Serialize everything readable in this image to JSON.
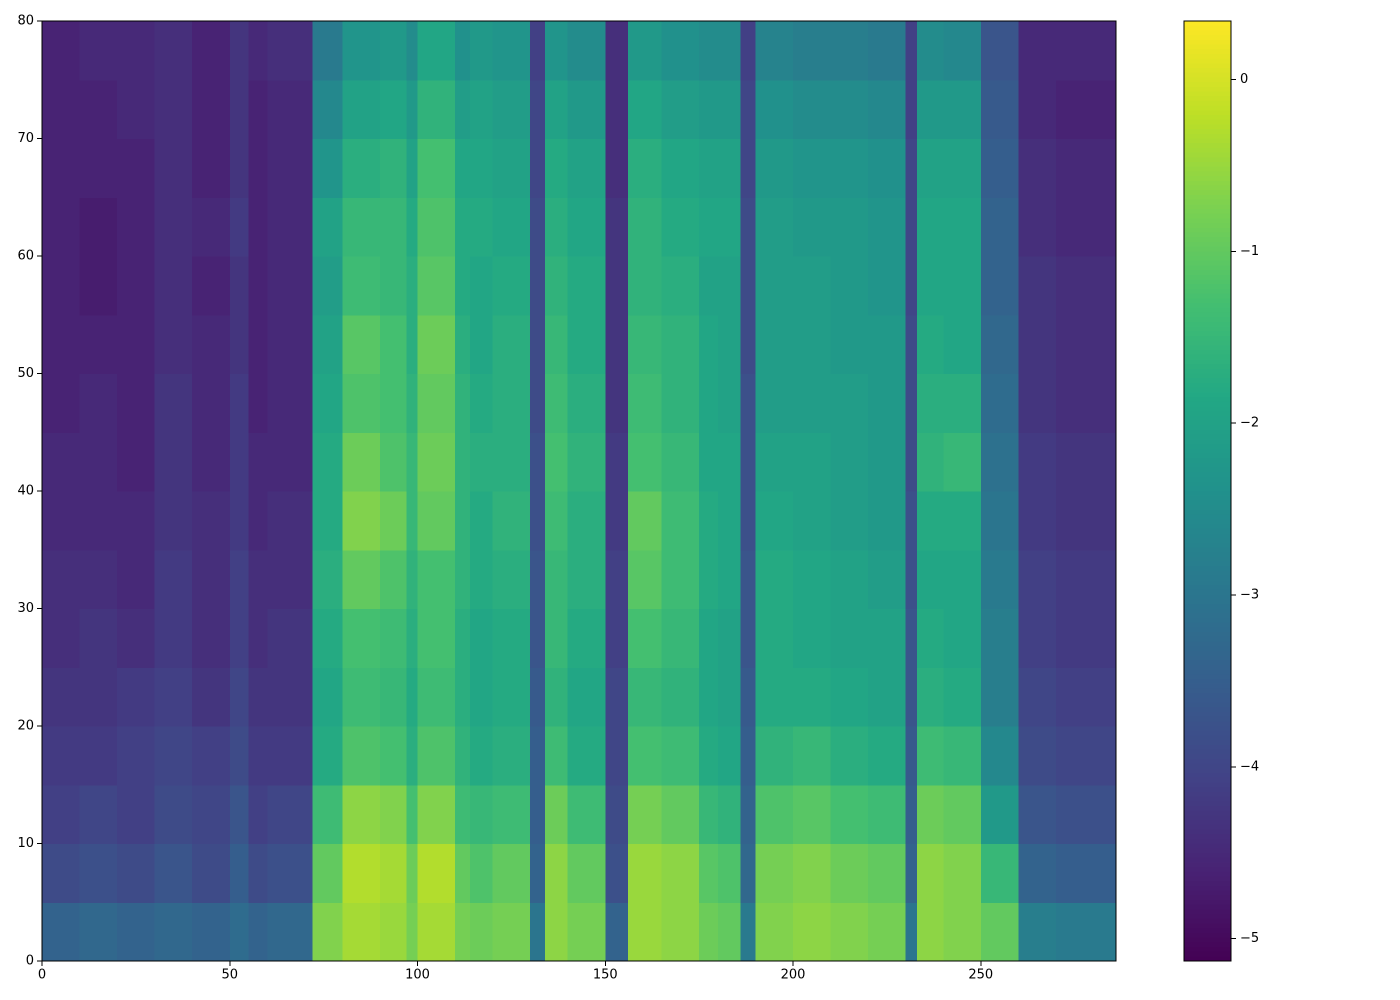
{
  "chart_data": {
    "type": "heatmap",
    "colormap": "viridis",
    "x_edges": [
      0,
      10,
      20,
      30,
      40,
      50,
      55,
      60,
      72,
      80,
      90,
      97,
      100,
      110,
      114,
      120,
      130,
      134,
      140,
      150,
      156,
      165,
      175,
      180,
      186,
      190,
      200,
      210,
      220,
      230,
      233,
      240,
      250,
      260,
      270,
      286
    ],
    "y_edges": [
      0,
      5,
      10,
      15,
      20,
      25,
      30,
      35,
      40,
      45,
      50,
      55,
      60,
      65,
      70,
      75,
      80
    ],
    "values": [
      [
        -3.4,
        -3.9,
        -4.1,
        -4.2,
        -4.3,
        -4.4,
        -4.4,
        -4.5,
        -4.5,
        -4.6,
        -4.6,
        -4.6,
        -4.6,
        -4.6,
        -4.6,
        -4.6
      ],
      [
        -3.3,
        -3.8,
        -4.0,
        -4.2,
        -4.3,
        -4.3,
        -4.4,
        -4.5,
        -4.5,
        -4.5,
        -4.6,
        -4.7,
        -4.7,
        -4.6,
        -4.6,
        -4.5
      ],
      [
        -3.4,
        -3.9,
        -4.1,
        -4.1,
        -4.2,
        -4.4,
        -4.5,
        -4.5,
        -4.6,
        -4.6,
        -4.6,
        -4.6,
        -4.6,
        -4.6,
        -4.5,
        -4.5
      ],
      [
        -3.3,
        -3.7,
        -3.9,
        -4.0,
        -4.1,
        -4.2,
        -4.2,
        -4.3,
        -4.3,
        -4.3,
        -4.4,
        -4.4,
        -4.4,
        -4.4,
        -4.4,
        -4.4
      ],
      [
        -3.4,
        -3.9,
        -4.0,
        -4.1,
        -4.3,
        -4.4,
        -4.4,
        -4.4,
        -4.5,
        -4.5,
        -4.5,
        -4.6,
        -4.5,
        -4.6,
        -4.6,
        -4.6
      ],
      [
        -3.2,
        -3.5,
        -3.7,
        -3.9,
        -4.0,
        -4.1,
        -4.1,
        -4.2,
        -4.2,
        -4.2,
        -4.3,
        -4.3,
        -4.2,
        -4.3,
        -4.3,
        -4.3
      ],
      [
        -3.4,
        -3.9,
        -4.1,
        -4.2,
        -4.3,
        -4.4,
        -4.4,
        -4.5,
        -4.5,
        -4.6,
        -4.6,
        -4.6,
        -4.6,
        -4.6,
        -4.6,
        -4.5
      ],
      [
        -3.3,
        -3.8,
        -4.0,
        -4.2,
        -4.3,
        -4.3,
        -4.4,
        -4.4,
        -4.5,
        -4.5,
        -4.5,
        -4.5,
        -4.5,
        -4.5,
        -4.5,
        -4.4
      ],
      [
        -0.7,
        -1.0,
        -1.4,
        -1.8,
        -1.9,
        -1.8,
        -1.7,
        -1.8,
        -1.8,
        -1.9,
        -2.0,
        -2.1,
        -2.0,
        -2.3,
        -2.6,
        -2.9
      ],
      [
        -0.4,
        -0.3,
        -0.6,
        -1.2,
        -1.4,
        -1.3,
        -1.0,
        -0.7,
        -0.9,
        -1.2,
        -1.1,
        -1.4,
        -1.5,
        -1.7,
        -2.0,
        -2.3
      ],
      [
        -0.5,
        -0.4,
        -0.7,
        -1.3,
        -1.5,
        -1.4,
        -1.2,
        -0.9,
        -1.2,
        -1.3,
        -1.3,
        -1.5,
        -1.5,
        -1.6,
        -1.9,
        -2.2
      ],
      [
        -0.8,
        -0.9,
        -1.3,
        -1.7,
        -1.8,
        -1.7,
        -1.6,
        -1.5,
        -1.5,
        -1.6,
        -1.7,
        -1.7,
        -1.8,
        -2.0,
        -2.2,
        -2.5
      ],
      [
        -0.4,
        -0.3,
        -0.7,
        -1.2,
        -1.4,
        -1.3,
        -1.3,
        -1.0,
        -0.9,
        -1.0,
        -0.9,
        -1.1,
        -1.2,
        -1.3,
        -1.6,
        -1.9
      ],
      [
        -0.8,
        -1.0,
        -1.4,
        -1.6,
        -1.7,
        -1.7,
        -1.6,
        -1.6,
        -1.6,
        -1.6,
        -1.7,
        -1.8,
        -1.8,
        -1.9,
        -2.1,
        -2.4
      ],
      [
        -0.9,
        -1.2,
        -1.5,
        -1.8,
        -1.9,
        -1.9,
        -1.8,
        -1.8,
        -1.7,
        -1.8,
        -1.9,
        -1.9,
        -1.8,
        -1.9,
        -2.0,
        -2.2
      ],
      [
        -0.8,
        -1.0,
        -1.4,
        -1.7,
        -1.8,
        -1.8,
        -1.7,
        -1.6,
        -1.7,
        -1.7,
        -1.7,
        -1.8,
        -1.9,
        -2.0,
        -2.1,
        -2.3
      ],
      [
        -3.0,
        -3.4,
        -3.5,
        -3.5,
        -3.6,
        -3.7,
        -3.7,
        -3.8,
        -3.8,
        -3.9,
        -3.9,
        -3.9,
        -3.9,
        -4.0,
        -4.0,
        -4.1
      ],
      [
        -0.6,
        -0.6,
        -0.9,
        -1.4,
        -1.6,
        -1.5,
        -1.5,
        -1.4,
        -1.3,
        -1.4,
        -1.5,
        -1.6,
        -1.7,
        -1.8,
        -2.0,
        -2.3
      ],
      [
        -0.8,
        -1.0,
        -1.4,
        -1.8,
        -1.9,
        -1.8,
        -1.7,
        -1.7,
        -1.6,
        -1.7,
        -1.8,
        -1.8,
        -1.9,
        -2.0,
        -2.2,
        -2.5
      ],
      [
        -3.4,
        -3.8,
        -3.9,
        -4.0,
        -4.0,
        -4.1,
        -4.1,
        -4.2,
        -4.2,
        -4.3,
        -4.3,
        -4.3,
        -4.3,
        -4.4,
        -4.4,
        -4.4
      ],
      [
        -0.5,
        -0.5,
        -0.8,
        -1.3,
        -1.5,
        -1.3,
        -1.1,
        -1.0,
        -1.3,
        -1.4,
        -1.5,
        -1.6,
        -1.6,
        -1.7,
        -1.9,
        -2.2
      ],
      [
        -0.6,
        -0.6,
        -1.0,
        -1.4,
        -1.6,
        -1.5,
        -1.4,
        -1.4,
        -1.5,
        -1.6,
        -1.6,
        -1.7,
        -1.8,
        -1.9,
        -2.1,
        -2.4
      ],
      [
        -0.9,
        -1.1,
        -1.5,
        -1.8,
        -1.9,
        -1.9,
        -1.8,
        -1.8,
        -1.9,
        -1.9,
        -1.9,
        -2.0,
        -1.9,
        -2.0,
        -2.2,
        -2.5
      ],
      [
        -1.0,
        -1.2,
        -1.6,
        -1.9,
        -2.0,
        -2.0,
        -1.9,
        -1.9,
        -1.9,
        -2.0,
        -2.0,
        -2.0,
        -1.9,
        -2.0,
        -2.2,
        -2.5
      ],
      [
        -2.9,
        -3.3,
        -3.4,
        -3.5,
        -3.6,
        -3.7,
        -3.7,
        -3.8,
        -3.8,
        -3.8,
        -3.9,
        -3.9,
        -3.9,
        -4.0,
        -4.0,
        -4.1
      ],
      [
        -0.7,
        -0.8,
        -1.2,
        -1.6,
        -1.8,
        -1.8,
        -1.8,
        -1.9,
        -2.0,
        -2.1,
        -2.1,
        -2.1,
        -2.1,
        -2.2,
        -2.4,
        -2.7
      ],
      [
        -0.6,
        -0.7,
        -1.1,
        -1.5,
        -1.8,
        -1.9,
        -1.9,
        -2.0,
        -2.0,
        -2.1,
        -2.1,
        -2.1,
        -2.2,
        -2.3,
        -2.5,
        -2.8
      ],
      [
        -0.7,
        -0.9,
        -1.3,
        -1.7,
        -1.9,
        -2.0,
        -2.0,
        -2.1,
        -2.1,
        -2.1,
        -2.2,
        -2.2,
        -2.2,
        -2.3,
        -2.5,
        -2.8
      ],
      [
        -0.8,
        -1.0,
        -1.4,
        -1.8,
        -2.0,
        -2.0,
        -2.1,
        -2.2,
        -2.2,
        -2.2,
        -2.2,
        -2.3,
        -2.3,
        -2.4,
        -2.6,
        -2.9
      ],
      [
        -3.0,
        -3.4,
        -3.5,
        -3.6,
        -3.7,
        -3.7,
        -3.8,
        -3.8,
        -3.9,
        -3.9,
        -3.9,
        -4.0,
        -4.0,
        -4.0,
        -4.1,
        -4.1
      ],
      [
        -0.6,
        -0.6,
        -0.9,
        -1.4,
        -1.7,
        -1.8,
        -1.9,
        -1.8,
        -1.6,
        -1.7,
        -1.8,
        -1.9,
        -1.9,
        -2.0,
        -2.2,
        -2.5
      ],
      [
        -0.7,
        -0.7,
        -1.0,
        -1.5,
        -1.8,
        -1.9,
        -1.9,
        -1.8,
        -1.5,
        -1.7,
        -1.9,
        -1.9,
        -1.9,
        -2.0,
        -2.2,
        -2.6
      ],
      [
        -1.0,
        -1.5,
        -2.2,
        -2.6,
        -2.8,
        -2.8,
        -2.9,
        -3.0,
        -3.1,
        -3.2,
        -3.3,
        -3.4,
        -3.4,
        -3.5,
        -3.6,
        -3.7
      ],
      [
        -2.8,
        -3.4,
        -3.7,
        -3.9,
        -4.0,
        -4.1,
        -4.1,
        -4.2,
        -4.2,
        -4.3,
        -4.3,
        -4.3,
        -4.4,
        -4.4,
        -4.5,
        -4.5
      ],
      [
        -2.9,
        -3.5,
        -3.8,
        -4.0,
        -4.1,
        -4.2,
        -4.2,
        -4.3,
        -4.3,
        -4.4,
        -4.4,
        -4.4,
        -4.5,
        -4.5,
        -4.6,
        -4.5
      ]
    ],
    "xlim": [
      0,
      286
    ],
    "ylim": [
      0,
      80
    ],
    "xticks": [
      0,
      50,
      100,
      150,
      200,
      250
    ],
    "yticks": [
      0,
      10,
      20,
      30,
      40,
      50,
      60,
      70,
      80
    ],
    "clim": [
      -5.13,
      0.34
    ],
    "cticks": [
      {
        "value": -5,
        "label": "−5"
      },
      {
        "value": -4,
        "label": "−4"
      },
      {
        "value": -3,
        "label": "−3"
      },
      {
        "value": -2,
        "label": "−2"
      },
      {
        "value": -1,
        "label": "−1"
      },
      0
    ]
  }
}
